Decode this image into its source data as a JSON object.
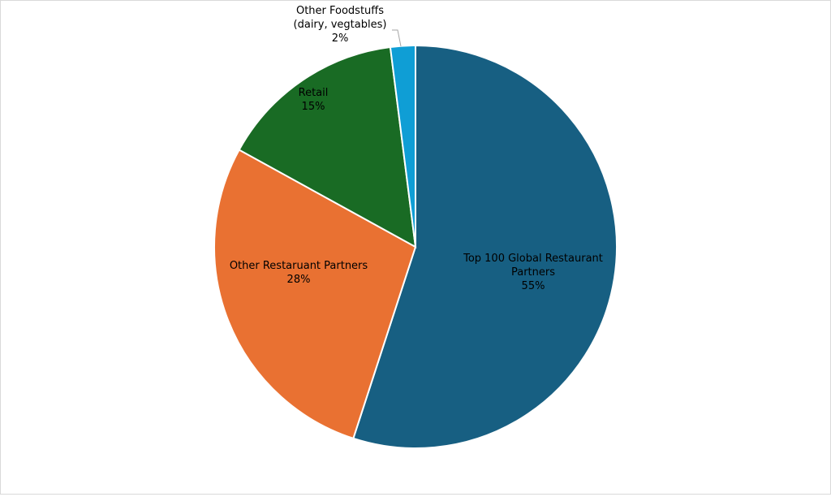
{
  "chart_data": {
    "type": "pie",
    "title": "",
    "start_angle": "top, clockwise",
    "slices": [
      {
        "label": [
          "Top 100 Global Restaurant",
          "Partners"
        ],
        "percent_label": "55%",
        "value": 55,
        "color": "#175f82"
      },
      {
        "label": [
          "Other Restaruant Partners"
        ],
        "percent_label": "28%",
        "value": 28,
        "color": "#e97132"
      },
      {
        "label": [
          "Retail"
        ],
        "percent_label": "15%",
        "value": 15,
        "color": "#196b24"
      },
      {
        "label": [
          "Other Foodstuffs",
          "(dairy, vegtables)"
        ],
        "percent_label": "2%",
        "value": 2,
        "color": "#0f9ed5"
      }
    ]
  }
}
